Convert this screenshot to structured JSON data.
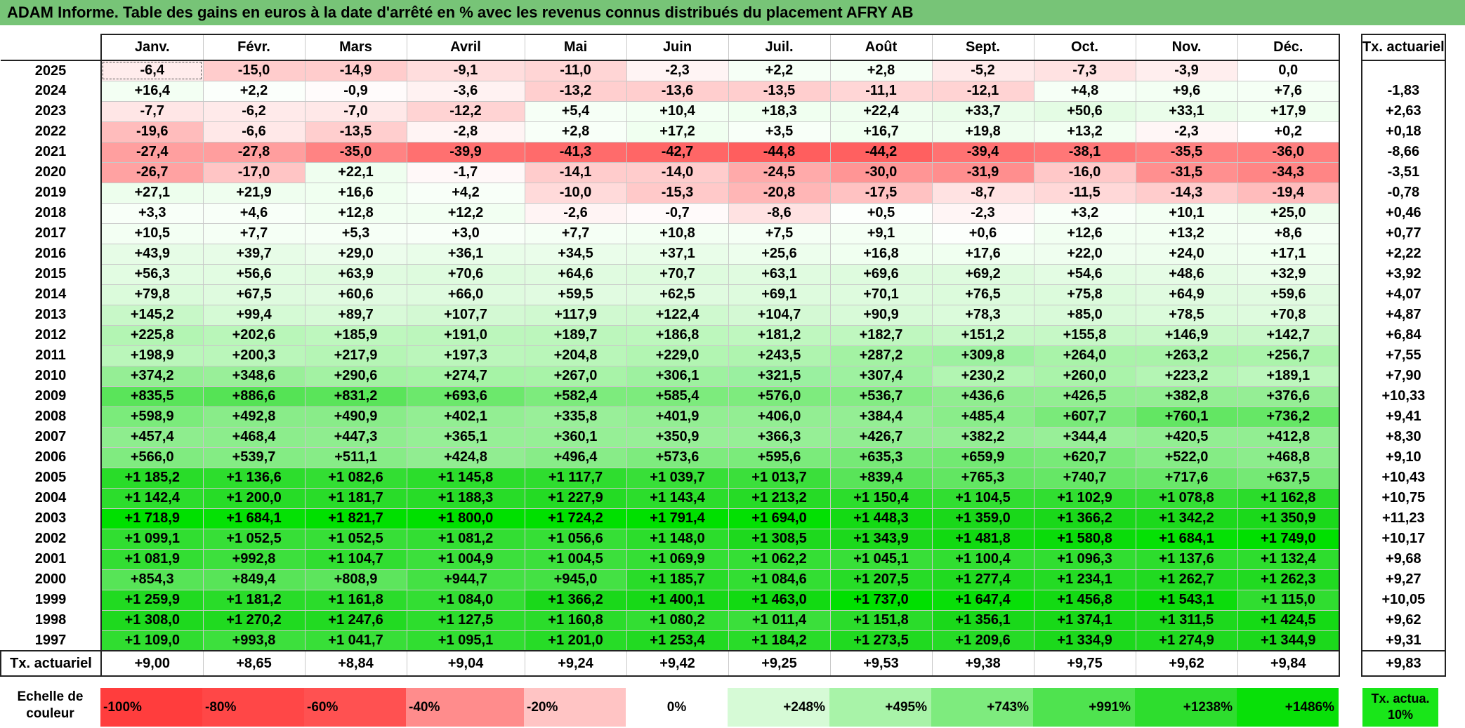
{
  "title": "ADAM Informe. Table des gains en euros à la date d'arrêté en % avec les revenus connus distribués du placement AFRY AB",
  "header": {
    "months": [
      "Janv.",
      "Févr.",
      "Mars",
      "Avril",
      "Mai",
      "Juin",
      "Juil.",
      "Août",
      "Sept.",
      "Oct.",
      "Nov.",
      "Déc."
    ],
    "actuarial_label": "Tx. actuariel"
  },
  "rows": [
    {
      "year": "2025",
      "values": [
        "-6,4",
        "-15,0",
        "-14,9",
        "-9,1",
        "-11,0",
        "-2,3",
        "+2,2",
        "+2,8",
        "-5,2",
        "-7,3",
        "-3,9",
        "0,0"
      ],
      "colors": [
        "#ffecec",
        "#ffcccc",
        "#ffcccc",
        "#ffdddd",
        "#ffd5d5",
        "#fff4f4",
        "#f6fff6",
        "#f5fff5",
        "#ffeaea",
        "#ffe2e2",
        "#ffeeee",
        "#ffffff"
      ],
      "actuarial": ""
    },
    {
      "year": "2024",
      "values": [
        "+16,4",
        "+2,2",
        "-0,9",
        "-3,6",
        "-13,2",
        "-13,6",
        "-13,5",
        "-11,1",
        "-12,1",
        "+4,8",
        "+9,6",
        "+7,6"
      ],
      "colors": [
        "#f3fff3",
        "#fbfffb",
        "#fffbfb",
        "#fff2f2",
        "#ffcfcf",
        "#ffcece",
        "#ffcece",
        "#ffd6d6",
        "#ffd3d3",
        "#f6fff6",
        "#f3fff3",
        "#f5fff5"
      ],
      "actuarial": "-1,83"
    },
    {
      "year": "2023",
      "values": [
        "-7,7",
        "-6,2",
        "-7,0",
        "-12,2",
        "+5,4",
        "+10,4",
        "+18,3",
        "+22,4",
        "+33,7",
        "+50,6",
        "+33,1",
        "+17,9"
      ],
      "colors": [
        "#ffe6e6",
        "#ffeaea",
        "#ffe8e8",
        "#ffd3d3",
        "#f6fff6",
        "#f3fff3",
        "#f0fff0",
        "#effeef",
        "#eafdea",
        "#e4fce4",
        "#eafdea",
        "#f0fff0"
      ],
      "actuarial": "+2,63"
    },
    {
      "year": "2022",
      "values": [
        "-19,6",
        "-6,6",
        "-13,5",
        "-2,8",
        "+2,8",
        "+17,2",
        "+3,5",
        "+16,7",
        "+19,8",
        "+13,2",
        "-2,3",
        "+0,2"
      ],
      "colors": [
        "#ffbcbc",
        "#ffe8e8",
        "#ffcece",
        "#fff4f4",
        "#f8fff8",
        "#f0fff0",
        "#f8fff8",
        "#f0fff0",
        "#effeef",
        "#f2fff2",
        "#fff6f6",
        "#ffffff"
      ],
      "actuarial": "+0,18"
    },
    {
      "year": "2021",
      "values": [
        "-27,4",
        "-27,8",
        "-35,0",
        "-39,9",
        "-41,3",
        "-42,7",
        "-44,8",
        "-44,2",
        "-39,4",
        "-38,1",
        "-35,5",
        "-36,0"
      ],
      "colors": [
        "#ff9f9f",
        "#ff9e9e",
        "#ff8383",
        "#ff7070",
        "#ff6b6b",
        "#ff6666",
        "#ff5e5e",
        "#ff6060",
        "#ff7272",
        "#ff7777",
        "#ff8181",
        "#ff7f7f"
      ],
      "actuarial": "-8,66"
    },
    {
      "year": "2020",
      "values": [
        "-26,7",
        "-17,0",
        "+22,1",
        "-1,7",
        "-14,1",
        "-14,0",
        "-24,5",
        "-30,0",
        "-31,9",
        "-16,0",
        "-31,5",
        "-34,3"
      ],
      "colors": [
        "#ffa2a2",
        "#ffc5c5",
        "#effeef",
        "#fff8f8",
        "#ffcccc",
        "#ffcccc",
        "#ffaaaa",
        "#ff9595",
        "#ff8e8e",
        "#ffc8c8",
        "#ff8f8f",
        "#ff8585"
      ],
      "actuarial": "-3,51"
    },
    {
      "year": "2019",
      "values": [
        "+27,1",
        "+21,9",
        "+16,6",
        "+4,2",
        "-10,0",
        "-15,3",
        "-20,8",
        "-17,5",
        "-8,7",
        "-11,5",
        "-14,3",
        "-19,4"
      ],
      "colors": [
        "#edfeed",
        "#effeef",
        "#f0fff0",
        "#f8fff8",
        "#ffdada",
        "#ffc9c9",
        "#ffb6b6",
        "#ffc2c2",
        "#ffe2e2",
        "#ffd8d8",
        "#ffcccc",
        "#ffbcbc"
      ],
      "actuarial": "-0,78"
    },
    {
      "year": "2018",
      "values": [
        "+3,3",
        "+4,6",
        "+12,8",
        "+12,2",
        "-2,6",
        "-0,7",
        "-8,6",
        "+0,5",
        "-2,3",
        "+3,2",
        "+10,1",
        "+25,0"
      ],
      "colors": [
        "#f8fff8",
        "#f8fff8",
        "#f2fff2",
        "#f2fff2",
        "#fff4f4",
        "#fffafa",
        "#ffe2e2",
        "#fcfffc",
        "#fff5f5",
        "#f8fff8",
        "#f3fff3",
        "#eefeee"
      ],
      "actuarial": "+0,46"
    },
    {
      "year": "2017",
      "values": [
        "+10,5",
        "+7,7",
        "+5,3",
        "+3,0",
        "+7,7",
        "+10,8",
        "+7,5",
        "+9,1",
        "+0,6",
        "+12,6",
        "+13,2",
        "+8,6"
      ],
      "colors": [
        "#f3fff3",
        "#f5fff5",
        "#f6fff6",
        "#f8fff8",
        "#f5fff5",
        "#f3fff3",
        "#f5fff5",
        "#f4fff4",
        "#fcfffc",
        "#f2fff2",
        "#f2fff2",
        "#f4fff4"
      ],
      "actuarial": "+0,77"
    },
    {
      "year": "2016",
      "values": [
        "+43,9",
        "+39,7",
        "+29,0",
        "+36,1",
        "+34,5",
        "+37,1",
        "+25,6",
        "+16,8",
        "+17,6",
        "+22,0",
        "+24,0",
        "+17,1"
      ],
      "colors": [
        "#e6fce6",
        "#e7fce7",
        "#ecfdec",
        "#e9fde9",
        "#eafdea",
        "#e9fde9",
        "#edfeed",
        "#f0fff0",
        "#f0fff0",
        "#effeef",
        "#eefeee",
        "#f0fff0"
      ],
      "actuarial": "+2,22"
    },
    {
      "year": "2015",
      "values": [
        "+56,3",
        "+56,6",
        "+63,9",
        "+70,6",
        "+64,6",
        "+70,7",
        "+63,1",
        "+69,6",
        "+69,2",
        "+54,6",
        "+48,6",
        "+32,9"
      ],
      "colors": [
        "#e2fce2",
        "#e2fce2",
        "#e0fbe0",
        "#defbde",
        "#e0fbe0",
        "#defbde",
        "#e0fbe0",
        "#defbde",
        "#defbde",
        "#e3fce3",
        "#e5fce5",
        "#eafdea"
      ],
      "actuarial": "+3,92"
    },
    {
      "year": "2014",
      "values": [
        "+79,8",
        "+67,5",
        "+60,6",
        "+66,0",
        "+59,5",
        "+62,5",
        "+69,1",
        "+70,1",
        "+76,5",
        "+75,8",
        "+64,9",
        "+59,6"
      ],
      "colors": [
        "#dbfbdb",
        "#dffbdf",
        "#e1fbe1",
        "#dffbdf",
        "#e1fbe1",
        "#e0fbe0",
        "#defbde",
        "#defbde",
        "#dcfbdc",
        "#dcfbdc",
        "#e0fbe0",
        "#e1fbe1"
      ],
      "actuarial": "+4,07"
    },
    {
      "year": "2013",
      "values": [
        "+145,2",
        "+99,4",
        "+89,7",
        "+107,7",
        "+117,9",
        "+122,4",
        "+104,7",
        "+90,9",
        "+78,3",
        "+85,0",
        "+78,5",
        "+70,8"
      ],
      "colors": [
        "#c8f8c8",
        "#d5fad5",
        "#d8fad8",
        "#d3f9d3",
        "#d0f9d0",
        "#cff9cf",
        "#d4f9d4",
        "#d8fad8",
        "#dbfbdb",
        "#d9fad9",
        "#dbfbdb",
        "#defbde"
      ],
      "actuarial": "+4,87"
    },
    {
      "year": "2012",
      "values": [
        "+225,8",
        "+202,6",
        "+185,9",
        "+191,0",
        "+189,7",
        "+186,8",
        "+181,2",
        "+182,7",
        "+151,2",
        "+155,8",
        "+146,9",
        "+142,7"
      ],
      "colors": [
        "#b3f5b3",
        "#b9f6b9",
        "#bef7be",
        "#bcf6bc",
        "#bcf6bc",
        "#bdf7bd",
        "#bff7bf",
        "#bff7bf",
        "#c7f8c7",
        "#c6f8c6",
        "#c8f8c8",
        "#c9f8c9"
      ],
      "actuarial": "+6,84"
    },
    {
      "year": "2011",
      "values": [
        "+198,9",
        "+200,3",
        "+217,9",
        "+197,3",
        "+204,8",
        "+229,0",
        "+243,5",
        "+287,2",
        "+309,8",
        "+264,0",
        "+263,2",
        "+256,7"
      ],
      "colors": [
        "#baf6ba",
        "#baf6ba",
        "#b5f5b5",
        "#bbf6bb",
        "#b9f6b9",
        "#b2f5b2",
        "#aff4af",
        "#a3f2a3",
        "#9df1a0",
        "#a9f3a9",
        "#a9f3a9",
        "#abf4ab"
      ],
      "actuarial": "+7,55"
    },
    {
      "year": "2010",
      "values": [
        "+374,2",
        "+348,6",
        "+290,6",
        "+274,7",
        "+267,0",
        "+306,1",
        "+321,5",
        "+307,4",
        "+230,2",
        "+260,0",
        "+223,2",
        "+189,1"
      ],
      "colors": [
        "#95ee95",
        "#99ef99",
        "#a3f2a3",
        "#a6f3a6",
        "#a8f3a8",
        "#9ef1a0",
        "#9af0a0",
        "#9ef1a0",
        "#b2f5b2",
        "#aaf3aa",
        "#b4f5b4",
        "#bdf7bd"
      ],
      "actuarial": "+7,90"
    },
    {
      "year": "2009",
      "values": [
        "+835,5",
        "+886,6",
        "+831,2",
        "+693,6",
        "+582,4",
        "+585,4",
        "+576,0",
        "+536,7",
        "+436,6",
        "+426,5",
        "+382,8",
        "+376,6"
      ],
      "colors": [
        "#5ae45a",
        "#55e355",
        "#5ae45a",
        "#6ce86c",
        "#7deb7d",
        "#7deb7d",
        "#7eeb7e",
        "#84ec84",
        "#90ed90",
        "#92ee92",
        "#94ee94",
        "#95ee95"
      ],
      "actuarial": "+10,33"
    },
    {
      "year": "2008",
      "values": [
        "+598,9",
        "+492,8",
        "+490,9",
        "+402,1",
        "+335,8",
        "+401,9",
        "+406,0",
        "+384,4",
        "+485,4",
        "+607,7",
        "+760,1",
        "+736,2"
      ],
      "colors": [
        "#7beb7b",
        "#89ec89",
        "#89ec89",
        "#93ee93",
        "#99ef99",
        "#93ee93",
        "#93ee93",
        "#94ee94",
        "#8aed8a",
        "#7aea7a",
        "#63e663",
        "#66e766"
      ],
      "actuarial": "+9,41"
    },
    {
      "year": "2007",
      "values": [
        "+457,4",
        "+468,4",
        "+447,3",
        "+365,1",
        "+360,1",
        "+350,9",
        "+366,3",
        "+426,7",
        "+382,2",
        "+344,4",
        "+420,5",
        "+412,8"
      ],
      "colors": [
        "#8eed8e",
        "#8ced8c",
        "#8fed8f",
        "#96ef96",
        "#96ef96",
        "#97ef97",
        "#96ef96",
        "#91ed91",
        "#94ee94",
        "#98ef98",
        "#92ee92",
        "#92ee92"
      ],
      "actuarial": "+8,30"
    },
    {
      "year": "2006",
      "values": [
        "+566,0",
        "+539,7",
        "+511,1",
        "+424,8",
        "+496,4",
        "+573,6",
        "+595,6",
        "+635,3",
        "+659,9",
        "+620,7",
        "+522,0",
        "+468,8"
      ],
      "colors": [
        "#80eb80",
        "#84ec84",
        "#87ec87",
        "#91ed91",
        "#88ec88",
        "#7eeb7e",
        "#7beb7b",
        "#76e976",
        "#72e972",
        "#78ea78",
        "#85ec85",
        "#8ced8c"
      ],
      "actuarial": "+9,10"
    },
    {
      "year": "2005",
      "values": [
        "+1 185,2",
        "+1 136,6",
        "+1 082,6",
        "+1 145,8",
        "+1 117,7",
        "+1 039,7",
        "+1 013,7",
        "+839,4",
        "+765,3",
        "+740,7",
        "+717,6",
        "+637,5"
      ],
      "colors": [
        "#29dc29",
        "#2ddd2d",
        "#33de33",
        "#2cdd2c",
        "#2fdd2f",
        "#38df38",
        "#3bdf3b",
        "#59e459",
        "#62e662",
        "#66e766",
        "#69e769",
        "#75e975"
      ],
      "actuarial": "+10,43"
    },
    {
      "year": "2004",
      "values": [
        "+1 142,4",
        "+1 200,0",
        "+1 181,7",
        "+1 188,3",
        "+1 227,9",
        "+1 143,4",
        "+1 213,2",
        "+1 150,4",
        "+1 104,5",
        "+1 102,9",
        "+1 078,8",
        "+1 162,8"
      ],
      "colors": [
        "#2cdd2c",
        "#27dc27",
        "#29dc29",
        "#28dc28",
        "#24db24",
        "#2cdd2c",
        "#26db26",
        "#2cdd2c",
        "#31de31",
        "#31de31",
        "#34de34",
        "#2bdc2b"
      ],
      "actuarial": "+10,75"
    },
    {
      "year": "2003",
      "values": [
        "+1 718,9",
        "+1 684,1",
        "+1 821,7",
        "+1 800,0",
        "+1 724,2",
        "+1 791,4",
        "+1 694,0",
        "+1 448,3",
        "+1 359,0",
        "+1 366,2",
        "+1 342,2",
        "+1 350,9"
      ],
      "colors": [
        "#00e000",
        "#05e105",
        "#00e000",
        "#00e000",
        "#00e000",
        "#00e000",
        "#03e003",
        "#14da14",
        "#1ad81a",
        "#1ad81a",
        "#1cd91c",
        "#1bd91b"
      ],
      "actuarial": "+11,23"
    },
    {
      "year": "2002",
      "values": [
        "+1 099,1",
        "+1 052,5",
        "+1 052,5",
        "+1 081,2",
        "+1 056,6",
        "+1 148,0",
        "+1 308,5",
        "+1 343,9",
        "+1 481,8",
        "+1 580,8",
        "+1 684,1",
        "+1 749,0"
      ],
      "colors": [
        "#31de31",
        "#37df37",
        "#37df37",
        "#33de33",
        "#36df36",
        "#2cdd2c",
        "#1ed91e",
        "#1cd91c",
        "#11da11",
        "#0adc0a",
        "#05e105",
        "#00e000"
      ],
      "actuarial": "+10,17"
    },
    {
      "year": "2001",
      "values": [
        "+1 081,9",
        "+992,8",
        "+1 104,7",
        "+1 004,9",
        "+1 004,5",
        "+1 069,9",
        "+1 062,2",
        "+1 045,1",
        "+1 100,4",
        "+1 096,3",
        "+1 137,6",
        "+1 132,4"
      ],
      "colors": [
        "#33de33",
        "#3de03d",
        "#31de31",
        "#3ce03c",
        "#3ce03c",
        "#35df35",
        "#35df35",
        "#38df38",
        "#31de31",
        "#31de31",
        "#2ddd2d",
        "#2edd2e"
      ],
      "actuarial": "+9,68"
    },
    {
      "year": "2000",
      "values": [
        "+854,3",
        "+849,4",
        "+808,9",
        "+944,7",
        "+945,0",
        "+1 185,7",
        "+1 084,6",
        "+1 207,5",
        "+1 277,4",
        "+1 234,1",
        "+1 262,7",
        "+1 262,3"
      ],
      "colors": [
        "#57e457",
        "#58e458",
        "#5de55d",
        "#44e144",
        "#44e144",
        "#29dc29",
        "#33de33",
        "#27dc27",
        "#20da20",
        "#24db24",
        "#21da21",
        "#21da21"
      ],
      "actuarial": "+9,27"
    },
    {
      "year": "1999",
      "values": [
        "+1 259,9",
        "+1 181,2",
        "+1 161,8",
        "+1 084,0",
        "+1 366,2",
        "+1 400,1",
        "+1 463,0",
        "+1 737,0",
        "+1 647,4",
        "+1 456,8",
        "+1 543,1",
        "+1 115,0"
      ],
      "colors": [
        "#21da21",
        "#29dc29",
        "#2bdc2b",
        "#33de33",
        "#1ad81a",
        "#17d917",
        "#12da12",
        "#00e000",
        "#08df08",
        "#13da13",
        "#0cdc0c",
        "#30dd30"
      ],
      "actuarial": "+10,05"
    },
    {
      "year": "1998",
      "values": [
        "+1 308,0",
        "+1 270,2",
        "+1 247,6",
        "+1 127,5",
        "+1 160,8",
        "+1 080,2",
        "+1 011,4",
        "+1 151,8",
        "+1 356,1",
        "+1 374,1",
        "+1 311,5",
        "+1 424,5"
      ],
      "colors": [
        "#1ed91e",
        "#20da20",
        "#22da22",
        "#2ddd2d",
        "#2bdc2b",
        "#33de33",
        "#3bdf3b",
        "#2bdc2b",
        "#1ad81a",
        "#18d918",
        "#1dd91d",
        "#15da15"
      ],
      "actuarial": "+9,62"
    },
    {
      "year": "1997",
      "values": [
        "+1 109,0",
        "+993,8",
        "+1 041,7",
        "+1 095,1",
        "+1 201,0",
        "+1 253,4",
        "+1 184,2",
        "+1 273,5",
        "+1 209,6",
        "+1 334,9",
        "+1 274,9",
        "+1 344,9"
      ],
      "colors": [
        "#30dd30",
        "#3de03d",
        "#38df38",
        "#31de31",
        "#27dc27",
        "#22da22",
        "#29dc29",
        "#20da20",
        "#26db26",
        "#1cd91c",
        "#20da20",
        "#1cd91c"
      ],
      "actuarial": "+9,31"
    }
  ],
  "footer": {
    "label": "Tx. actuariel",
    "values": [
      "+9,00",
      "+8,65",
      "+8,84",
      "+9,04",
      "+9,24",
      "+9,42",
      "+9,25",
      "+9,53",
      "+9,38",
      "+9,75",
      "+9,62",
      "+9,84"
    ],
    "overall": "+9,83"
  },
  "scale": {
    "label": "Echelle de couleur",
    "items": [
      {
        "text": "-100%",
        "color": "#ff3d3d",
        "kind": "neg"
      },
      {
        "text": "-80%",
        "color": "#ff4747",
        "kind": "neg"
      },
      {
        "text": "-60%",
        "color": "#ff5151",
        "kind": "neg"
      },
      {
        "text": "-40%",
        "color": "#ff8c8c",
        "kind": "neg"
      },
      {
        "text": "-20%",
        "color": "#ffc4c4",
        "kind": "neg"
      },
      {
        "text": "0%",
        "color": "#ffffff",
        "kind": "zero"
      },
      {
        "text": "+248%",
        "color": "#d6fad6",
        "kind": "pos"
      },
      {
        "text": "+495%",
        "color": "#a8f3a8",
        "kind": "pos"
      },
      {
        "text": "+743%",
        "color": "#7eeb7e",
        "kind": "pos"
      },
      {
        "text": "+991%",
        "color": "#4fe34f",
        "kind": "pos"
      },
      {
        "text": "+1238%",
        "color": "#2edd2e",
        "kind": "pos"
      },
      {
        "text": "+1486%",
        "color": "#08e008",
        "kind": "pos"
      }
    ],
    "tx_label": "Tx. actua. 10%",
    "tx_color": "#19e619"
  }
}
